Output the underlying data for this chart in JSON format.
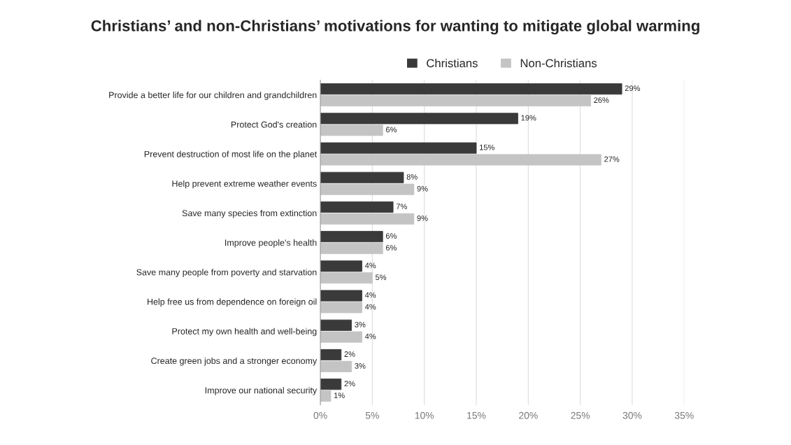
{
  "chart_data": {
    "type": "bar",
    "orientation": "horizontal",
    "title": "Christians’ and non-Christians’ motivations for wanting to mitigate global warming",
    "categories": [
      "Provide a better life for our children and grandchildren",
      "Protect God's creation",
      "Prevent destruction of most life on the planet",
      "Help prevent extreme weather events",
      "Save many species from extinction",
      "Improve people's health",
      "Save many people from poverty and starvation",
      "Help free us from dependence on foreign oil",
      "Protect my own health and well-being",
      "Create green jobs and a stronger economy",
      "Improve our national security"
    ],
    "series": [
      {
        "name": "Christians",
        "color": "#3a3a3a",
        "values": [
          29,
          19,
          15,
          8,
          7,
          6,
          4,
          4,
          3,
          2,
          2
        ],
        "value_labels": [
          "29%",
          "19%",
          "15%",
          "8%",
          "7%",
          "6%",
          "4%",
          "4%",
          "3%",
          "2%",
          "2%"
        ]
      },
      {
        "name": "Non-Christians",
        "color": "#c4c4c4",
        "values": [
          26,
          6,
          27,
          9,
          9,
          6,
          5,
          4,
          4,
          3,
          1
        ],
        "value_labels": [
          "26%",
          "6%",
          "27%",
          "9%",
          "9%",
          "6%",
          "5%",
          "4%",
          "4%",
          "3%",
          "1%"
        ]
      }
    ],
    "xlim": [
      0,
      35
    ],
    "xticks": [
      {
        "value": 0,
        "label": "0%"
      },
      {
        "value": 5,
        "label": "5%"
      },
      {
        "value": 10,
        "label": "10%"
      },
      {
        "value": 15,
        "label": "15%"
      },
      {
        "value": 20,
        "label": "20%"
      },
      {
        "value": 25,
        "label": "25%"
      },
      {
        "value": 30,
        "label": "30%"
      },
      {
        "value": 35,
        "label": "35%"
      }
    ],
    "grid": "x",
    "legend": "top"
  }
}
